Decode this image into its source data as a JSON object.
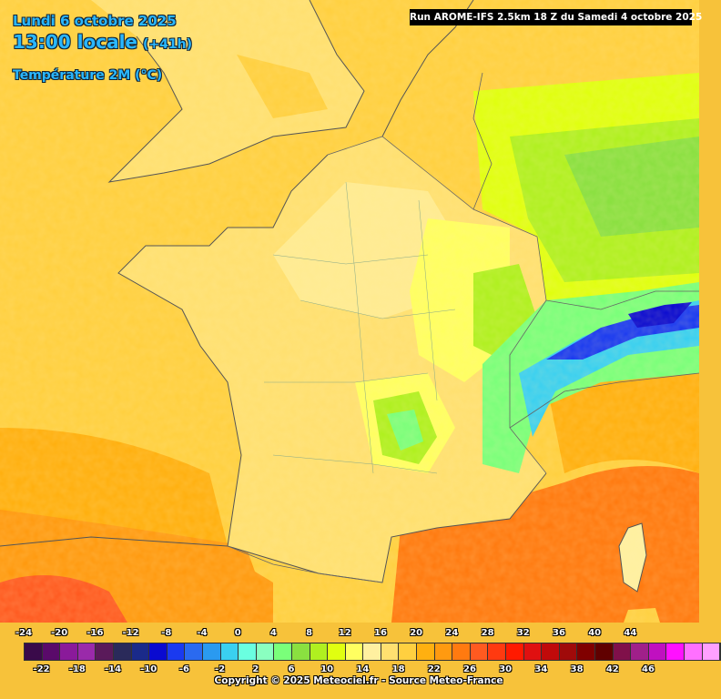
{
  "header": {
    "date": "Lundi 6 octobre 2025",
    "time": "13:00 locale",
    "lead": "(+41h)",
    "variable": "Température 2M (°C)",
    "run": "Run AROME-IFS 2.5km 18 Z du Samedi 4 octobre 2025"
  },
  "legend": {
    "top_labels": [
      "-24",
      "-20",
      "-16",
      "-12",
      "-8",
      "-4",
      "0",
      "4",
      "8",
      "12",
      "16",
      "20",
      "24",
      "28",
      "32",
      "36",
      "40",
      "44"
    ],
    "bottom_labels": [
      "-22",
      "-18",
      "-14",
      "-10",
      "-6",
      "-2",
      "2",
      "6",
      "10",
      "14",
      "18",
      "22",
      "26",
      "30",
      "34",
      "38",
      "42",
      "46"
    ],
    "colors": [
      "#3a0a4a",
      "#5a0a6a",
      "#8a1a9a",
      "#9a2aaa",
      "#5a1a5a",
      "#2a2a5a",
      "#1a2a8a",
      "#0a0ad0",
      "#1a3af0",
      "#2a6af0",
      "#2a9af0",
      "#3ad0f0",
      "#6affe0",
      "#8affc0",
      "#7aff7a",
      "#8ae040",
      "#b0f020",
      "#e0ff10",
      "#ffff60",
      "#fff0a0",
      "#ffe070",
      "#ffd040",
      "#ffb010",
      "#ff9a10",
      "#ff7a10",
      "#ff5a20",
      "#ff3a10",
      "#ff1a00",
      "#e01010",
      "#c00a0a",
      "#a00a0a",
      "#800000",
      "#600000",
      "#80104a",
      "#a0208a",
      "#c010c0",
      "#ff10ff",
      "#ff70ff",
      "#ffa0ff"
    ],
    "copyright": "Copyright © 2025 Meteociel.fr - Source Meteo-France"
  },
  "map": {
    "fields": {
      "sea_warm": "#ff7a10",
      "coast_warm": "#ff9a10",
      "land_base": "#ffd040",
      "land_mild": "#ffe070",
      "land_cool": "#fff0a0",
      "hills": "#ffff60",
      "uplands": "#b0f020",
      "high_ground": "#7aff7a",
      "alps_low": "#3ad0f0",
      "alps_high": "#1a3af0"
    }
  }
}
